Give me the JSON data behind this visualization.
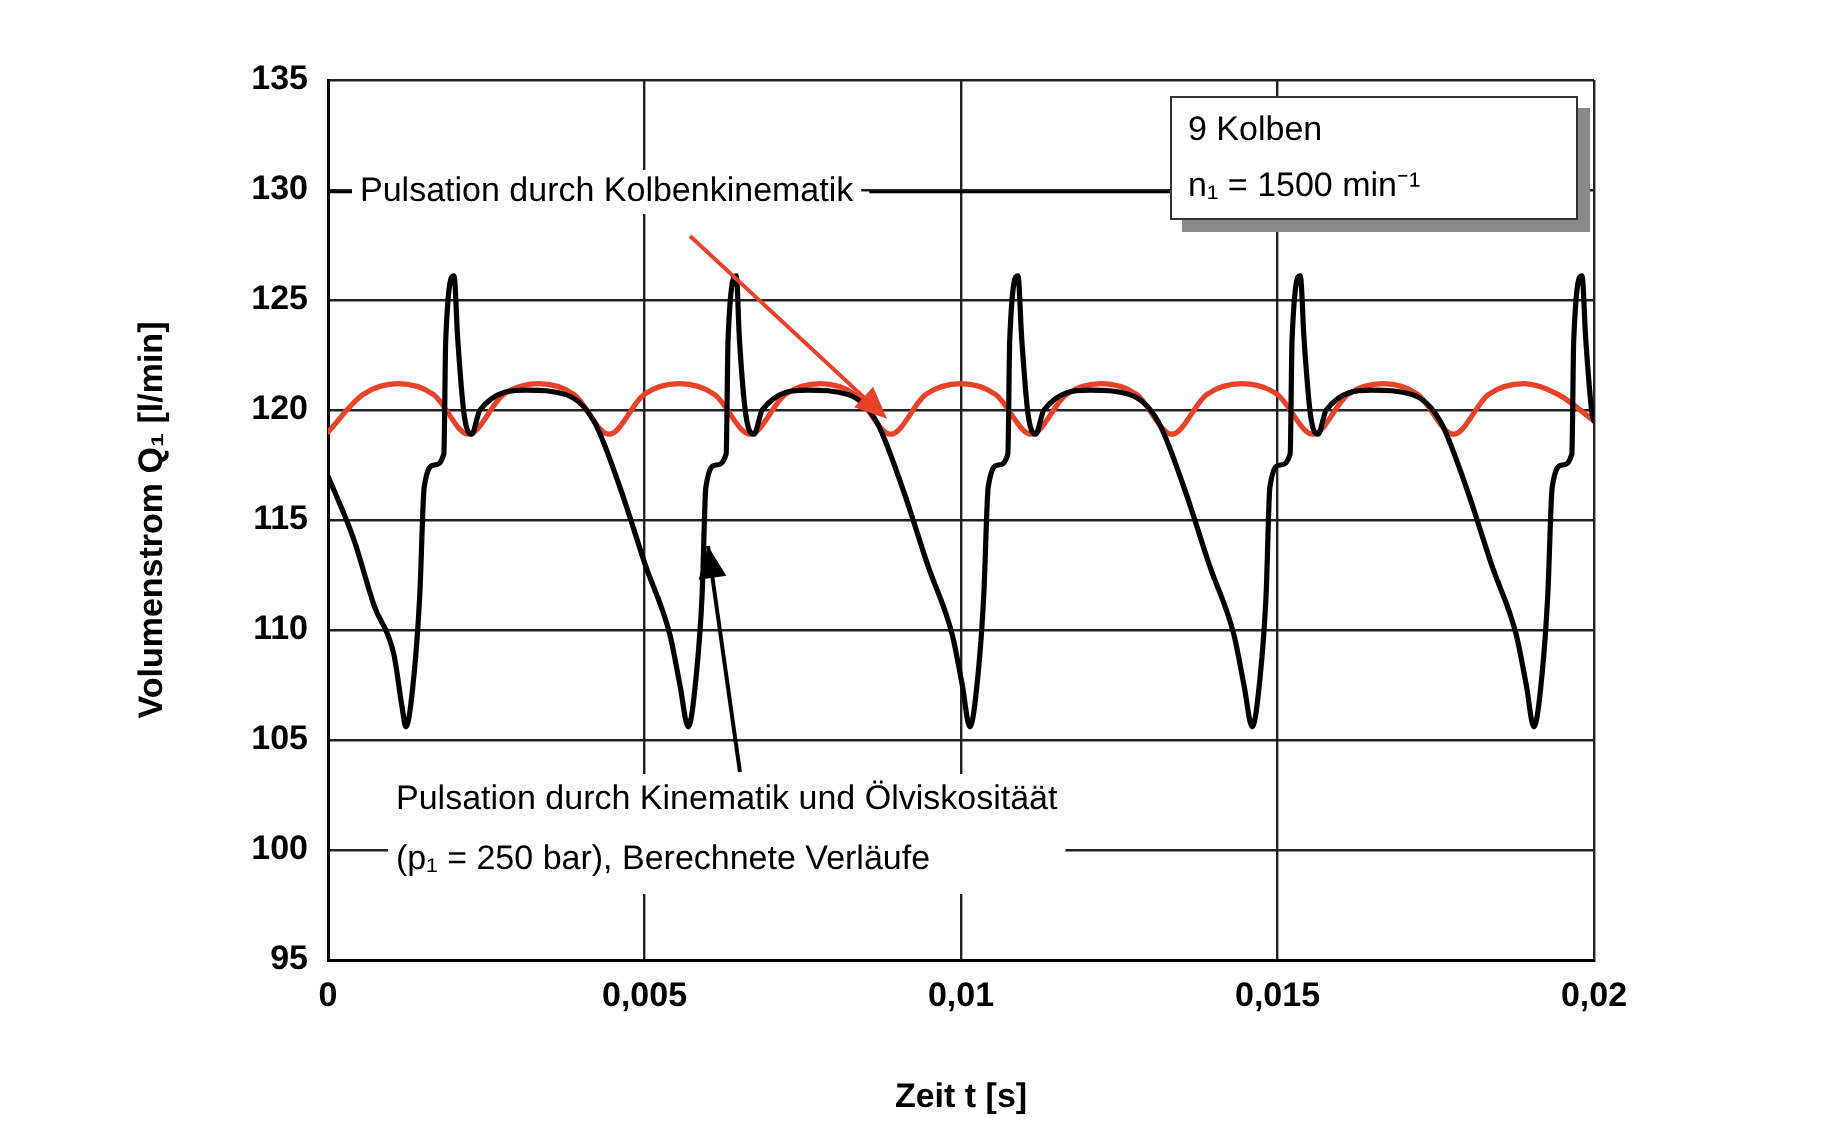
{
  "chart_data": {
    "type": "line",
    "xlabel": "Zeit t [s]",
    "ylabel": "Volumenstrom Q₁ [l/min]",
    "xlim": [
      0,
      0.02
    ],
    "ylim": [
      95,
      135
    ],
    "xticks": [
      0,
      {
        "value": 0.005,
        "label": "0,005"
      },
      {
        "value": 0.01,
        "label": "0,01"
      },
      {
        "value": 0.015,
        "label": "0,015"
      },
      {
        "value": 0.02,
        "label": "0,02"
      }
    ],
    "yticks": [
      95,
      100,
      105,
      110,
      115,
      120,
      125,
      130,
      135
    ],
    "grid": true,
    "legend": false,
    "marker": "none",
    "series": [
      {
        "color": "#e8432a",
        "x": [
          0,
          0.00055,
          0.00111,
          0.00167,
          0.00222,
          0.00277,
          0.00333,
          0.00389,
          0.00444,
          0.00499,
          0.00555,
          0.00611,
          0.00667,
          0.00722,
          0.00778,
          0.00833,
          0.00889,
          0.00944,
          0.01,
          0.01055,
          0.01111,
          0.01166,
          0.01222,
          0.01278,
          0.01333,
          0.01388,
          0.01444,
          0.015,
          0.01556,
          0.01611,
          0.01667,
          0.01722,
          0.01778,
          0.01833,
          0.01889,
          0.01944,
          0.02
        ],
        "values": [
          119.0,
          120.7,
          121.2,
          120.7,
          118.9,
          120.7,
          121.2,
          120.7,
          118.9,
          120.7,
          121.2,
          120.7,
          118.9,
          120.7,
          121.2,
          120.7,
          118.9,
          120.7,
          121.2,
          120.7,
          118.9,
          120.7,
          121.2,
          120.7,
          118.9,
          120.7,
          121.2,
          120.7,
          118.9,
          120.7,
          121.2,
          120.7,
          118.9,
          120.7,
          121.2,
          120.7,
          119.5
        ]
      },
      {
        "color": "#000000",
        "x": [
          0,
          0.00041,
          0.00073,
          0.00104,
          0.00117,
          0.00123,
          0.00136,
          0.00145,
          0.00152,
          0.00168,
          0.00183,
          0.00186,
          0.00199,
          0.00205,
          0.00215,
          0.00227,
          0.0024,
          0.00313,
          0.00376,
          0.0042,
          0.00461,
          0.00502,
          0.0054,
          0.00556,
          0.00569,
          0.00582,
          0.00591,
          0.00597,
          0.00613,
          0.00629,
          0.00632,
          0.00645,
          0.0065,
          0.0066,
          0.00673,
          0.00686,
          0.00758,
          0.00822,
          0.00866,
          0.00907,
          0.00948,
          0.00986,
          0.01002,
          0.01014,
          0.01027,
          0.01036,
          0.01043,
          0.01059,
          0.01074,
          0.01077,
          0.0109,
          0.01096,
          0.01106,
          0.01118,
          0.01131,
          0.01204,
          0.01267,
          0.01311,
          0.01352,
          0.01393,
          0.01431,
          0.01447,
          0.0146,
          0.01473,
          0.01482,
          0.01488,
          0.01504,
          0.0152,
          0.01523,
          0.01536,
          0.01542,
          0.01552,
          0.01564,
          0.01577,
          0.01649,
          0.01713,
          0.01757,
          0.01798,
          0.01839,
          0.01877,
          0.01893,
          0.01905,
          0.01918,
          0.01927,
          0.01934,
          0.0195,
          0.01965,
          0.01968,
          0.01981,
          0.01987,
          0.01997,
          0.02
        ],
        "values": [
          117.0,
          114.1,
          111.1,
          108.9,
          106.5,
          105.6,
          108.0,
          111.6,
          116.5,
          117.5,
          118.0,
          123.2,
          126.1,
          123.2,
          119.8,
          118.9,
          120.0,
          120.9,
          120.7,
          119.5,
          116.5,
          112.9,
          109.8,
          107.5,
          105.6,
          108.0,
          111.6,
          116.5,
          117.5,
          118.0,
          123.2,
          126.1,
          123.2,
          119.8,
          118.9,
          120.0,
          120.9,
          120.7,
          119.5,
          116.5,
          112.9,
          109.8,
          107.5,
          105.6,
          108.0,
          111.6,
          116.5,
          117.5,
          118.0,
          123.2,
          126.1,
          123.2,
          119.8,
          118.9,
          120.0,
          120.9,
          120.7,
          119.5,
          116.5,
          112.9,
          109.8,
          107.5,
          105.6,
          108.0,
          111.6,
          116.5,
          117.5,
          118.0,
          123.2,
          126.1,
          123.2,
          119.8,
          118.9,
          120.0,
          120.9,
          120.7,
          119.5,
          116.5,
          112.9,
          109.8,
          107.5,
          105.6,
          108.0,
          111.6,
          116.5,
          117.5,
          118.0,
          123.2,
          126.1,
          123.2,
          119.8,
          119.5
        ]
      }
    ],
    "annotations": [
      {
        "text": "Pulsation durch Kolbenkinematik",
        "x": 0.00884,
        "y": 119.6
      },
      {
        "text": "Pulsation durch Kinematik und Ölviskositäät",
        "x": 0.00594,
        "y": 114
      },
      "(p₁ = 250 bar), Berechnete Verläufe",
      "9 Kolben",
      "n₁ = 1500 min⁻¹"
    ]
  }
}
